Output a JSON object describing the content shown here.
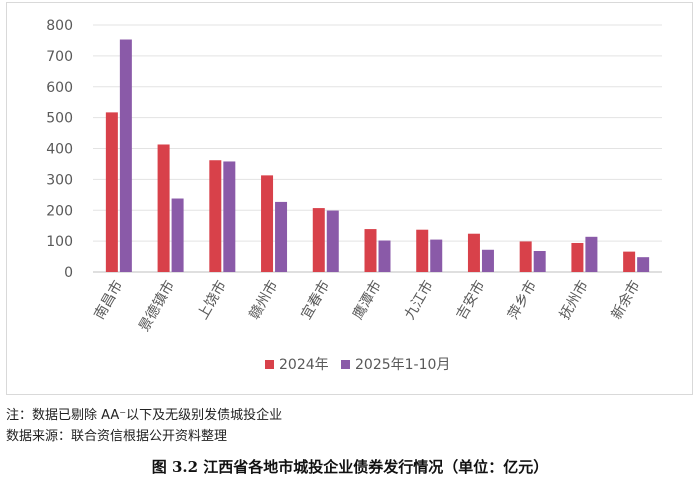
{
  "chart_data": {
    "type": "bar",
    "categories": [
      "南昌市",
      "景德镇市",
      "上饶市",
      "赣州市",
      "宜春市",
      "鹰潭市",
      "九江市",
      "吉安市",
      "萍乡市",
      "抚州市",
      "新余市"
    ],
    "series": [
      {
        "name": "2024年",
        "color": "#d8414a",
        "values": [
          517,
          413,
          362,
          313,
          207,
          139,
          137,
          124,
          99,
          94,
          66
        ]
      },
      {
        "name": "2025年1-10月",
        "color": "#8a5aa8",
        "values": [
          753,
          238,
          358,
          227,
          199,
          102,
          105,
          72,
          68,
          114,
          48
        ]
      }
    ],
    "yticks": [
      0,
      100,
      200,
      300,
      400,
      500,
      600,
      700,
      800
    ],
    "ylim": [
      0,
      800
    ],
    "grid": true,
    "legend_position": "bottom-center"
  },
  "notes": {
    "note_line": "注：数据已剔除 AA⁻以下及无级别发债城投企业",
    "source_line": "数据来源：联合资信根据公开资料整理"
  },
  "caption": "图 3.2  江西省各地市城投企业债券发行情况（单位：亿元）"
}
